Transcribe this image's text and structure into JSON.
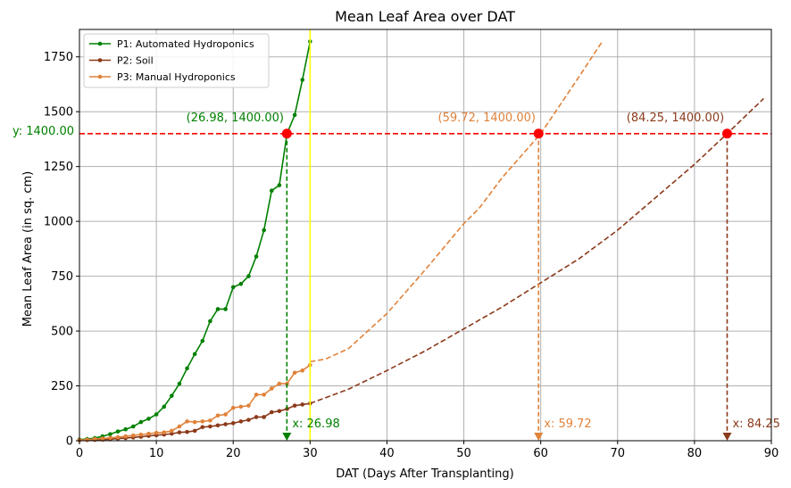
{
  "chart_data": {
    "type": "line",
    "title": "Mean Leaf Area over DAT",
    "xlabel": "DAT (Days After Transplanting)",
    "ylabel": "Mean Leaf Area (in sq. cm)",
    "xlim": [
      0,
      90
    ],
    "ylim": [
      0,
      1875
    ],
    "xticks": [
      0,
      10,
      20,
      30,
      40,
      50,
      60,
      70,
      80,
      90
    ],
    "yticks": [
      0,
      250,
      500,
      750,
      1000,
      1250,
      1500,
      1750
    ],
    "grid": true,
    "legend_position": "top-left",
    "series": [
      {
        "name": "P1: Automated Hydroponics",
        "color": "#008000",
        "style": "solid-markers",
        "x": [
          0,
          1,
          2,
          3,
          4,
          5,
          6,
          7,
          8,
          9,
          10,
          11,
          12,
          13,
          14,
          15,
          16,
          17,
          18,
          19,
          20,
          21,
          22,
          23,
          24,
          25,
          26,
          27,
          28,
          29,
          30
        ],
        "y": [
          5,
          8,
          12,
          20,
          30,
          42,
          52,
          65,
          85,
          100,
          120,
          155,
          205,
          260,
          330,
          395,
          455,
          545,
          600,
          600,
          700,
          715,
          750,
          840,
          960,
          1140,
          1165,
          1400,
          1485,
          1645,
          1820
        ]
      },
      {
        "name": "P2: Soil",
        "color": "#8B3A1A",
        "style": "solid-markers",
        "x": [
          0,
          1,
          2,
          3,
          4,
          5,
          6,
          7,
          8,
          9,
          10,
          11,
          12,
          13,
          14,
          15,
          16,
          17,
          18,
          19,
          20,
          21,
          22,
          23,
          24,
          25,
          26,
          27,
          28,
          29,
          30
        ],
        "y": [
          2,
          3,
          4,
          5,
          7,
          10,
          12,
          15,
          18,
          22,
          25,
          28,
          32,
          38,
          40,
          45,
          62,
          65,
          70,
          75,
          80,
          88,
          95,
          108,
          108,
          130,
          135,
          145,
          160,
          165,
          170
        ]
      },
      {
        "name": "P3: Manual Hydroponics",
        "color": "#E0823A",
        "style": "solid-markers",
        "x": [
          0,
          1,
          2,
          3,
          4,
          5,
          6,
          7,
          8,
          9,
          10,
          11,
          12,
          13,
          14,
          15,
          16,
          17,
          18,
          19,
          20,
          21,
          22,
          23,
          24,
          25,
          26,
          27,
          28,
          29,
          30
        ],
        "y": [
          3,
          5,
          8,
          10,
          13,
          16,
          20,
          24,
          28,
          32,
          36,
          38,
          45,
          65,
          88,
          85,
          88,
          92,
          115,
          120,
          150,
          155,
          160,
          210,
          210,
          238,
          260,
          260,
          310,
          320,
          345
        ]
      }
    ],
    "projections": [
      {
        "series": "P3: Manual Hydroponics",
        "color": "#E0823A",
        "style": "dashed",
        "x": [
          30,
          32,
          35,
          40,
          45,
          50,
          52,
          55,
          60,
          65,
          68
        ],
        "y": [
          360,
          372,
          420,
          580,
          780,
          990,
          1060,
          1200,
          1400,
          1660,
          1820
        ]
      },
      {
        "series": "P2: Soil",
        "color": "#8B3A1A",
        "style": "dashed",
        "x": [
          30,
          35,
          40,
          45,
          50,
          55,
          60,
          65,
          70,
          75,
          80,
          84.25,
          89
        ],
        "y": [
          170,
          235,
          320,
          410,
          510,
          610,
          720,
          830,
          960,
          1110,
          1260,
          1400,
          1560
        ]
      }
    ],
    "threshold": {
      "y": 1400,
      "label": "y: 1400.00",
      "color": "#FF0000"
    },
    "vertical_marker": {
      "x": 30,
      "color": "#FFFF00"
    },
    "intersections": [
      {
        "x": 26.98,
        "y": 1400,
        "label": "(26.98, 1400.00)",
        "x_label": "x: 26.98",
        "color": "#008000"
      },
      {
        "x": 59.72,
        "y": 1400,
        "label": "(59.72, 1400.00)",
        "x_label": "x: 59.72",
        "color": "#E0823A"
      },
      {
        "x": 84.25,
        "y": 1400,
        "label": "(84.25, 1400.00)",
        "x_label": "x: 84.25",
        "color": "#8B3A1A"
      }
    ]
  }
}
